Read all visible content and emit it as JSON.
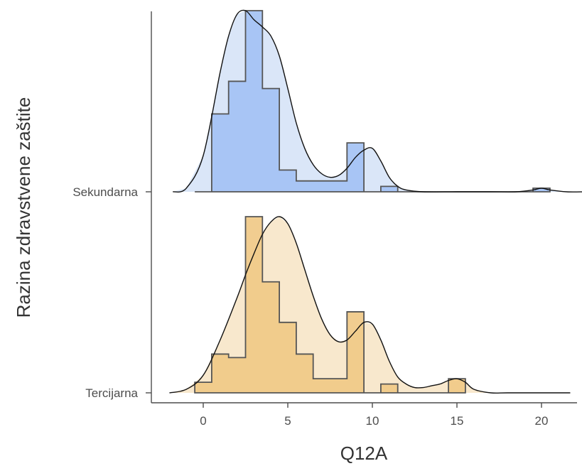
{
  "chart_data": {
    "type": "ridgeline",
    "xlabel": "Q12A",
    "ylabel": "Razina zdravstvene zaštite",
    "xlim": [
      -3,
      22.5
    ],
    "x_ticks": [
      0,
      5,
      10,
      15,
      20
    ],
    "x_tick_labels": [
      "0",
      "5",
      "10",
      "15",
      "20"
    ],
    "grid": false,
    "legend": "none",
    "series": [
      {
        "name": "Sekundarna",
        "fill_color": "#a4c2f4",
        "density_color": "#dae6f8",
        "histogram_edges": [
          -0.5,
          0.5,
          1.5,
          2.5,
          3.5,
          4.5,
          5.5,
          6.5,
          7.5,
          8.5,
          9.5,
          10.5,
          11.5,
          12.5,
          13.5,
          14.5,
          15.5,
          16.5,
          17.5,
          18.5,
          19.5,
          20.5
        ],
        "histogram_heights": [
          0.0,
          0.43,
          0.61,
          1.0,
          0.57,
          0.12,
          0.06,
          0.06,
          0.06,
          0.27,
          0.0,
          0.03,
          0,
          0,
          0,
          0,
          0,
          0,
          0,
          0,
          0.02
        ],
        "density": {
          "x": [
            -1.8,
            -1.0,
            0.0,
            1.0,
            1.5,
            2.0,
            2.5,
            3.0,
            3.5,
            4.0,
            4.5,
            5.0,
            5.5,
            6.0,
            6.5,
            7.0,
            7.5,
            8.0,
            8.5,
            9.0,
            9.5,
            10.0,
            10.5,
            11.0,
            11.5,
            12.0,
            13.0,
            15.0,
            17.0,
            18.5,
            19.5,
            20.0,
            20.5,
            21.5,
            22.5
          ],
          "y": [
            0.0,
            0.02,
            0.2,
            0.66,
            0.86,
            0.98,
            1.0,
            0.95,
            0.91,
            0.86,
            0.75,
            0.57,
            0.38,
            0.24,
            0.15,
            0.1,
            0.08,
            0.09,
            0.13,
            0.19,
            0.23,
            0.24,
            0.17,
            0.08,
            0.03,
            0.01,
            0.0,
            0.0,
            0.0,
            0.0,
            0.01,
            0.02,
            0.01,
            0.0,
            0.0
          ]
        }
      },
      {
        "name": "Tercijarna",
        "fill_color": "#f0c987",
        "density_color": "#f8e8cd",
        "histogram_edges": [
          -0.5,
          0.5,
          1.5,
          2.5,
          3.5,
          4.5,
          5.5,
          6.5,
          7.5,
          8.5,
          9.5,
          10.5,
          11.5,
          12.5,
          13.5,
          14.5,
          15.5
        ],
        "histogram_heights": [
          0.06,
          0.22,
          0.2,
          1.0,
          0.63,
          0.4,
          0.22,
          0.08,
          0.08,
          0.46,
          0.0,
          0.05,
          0.0,
          0.0,
          0.0,
          0.08
        ],
        "density": {
          "x": [
            -2.0,
            -1.0,
            0.0,
            1.0,
            2.0,
            2.5,
            3.0,
            3.5,
            4.0,
            4.5,
            5.0,
            5.5,
            6.0,
            6.5,
            7.0,
            7.5,
            8.0,
            8.5,
            9.0,
            9.5,
            10.0,
            10.5,
            11.0,
            11.5,
            12.0,
            12.5,
            13.0,
            13.5,
            14.0,
            14.5,
            15.0,
            15.5,
            16.0,
            17.0,
            18.0,
            20.0,
            21.7
          ],
          "y": [
            0.0,
            0.02,
            0.1,
            0.3,
            0.54,
            0.67,
            0.79,
            0.9,
            0.97,
            1.0,
            0.96,
            0.85,
            0.7,
            0.55,
            0.42,
            0.33,
            0.29,
            0.3,
            0.35,
            0.4,
            0.39,
            0.3,
            0.18,
            0.09,
            0.05,
            0.03,
            0.03,
            0.04,
            0.05,
            0.07,
            0.08,
            0.06,
            0.02,
            0.0,
            0.0,
            0.0,
            0.0
          ]
        }
      }
    ]
  }
}
